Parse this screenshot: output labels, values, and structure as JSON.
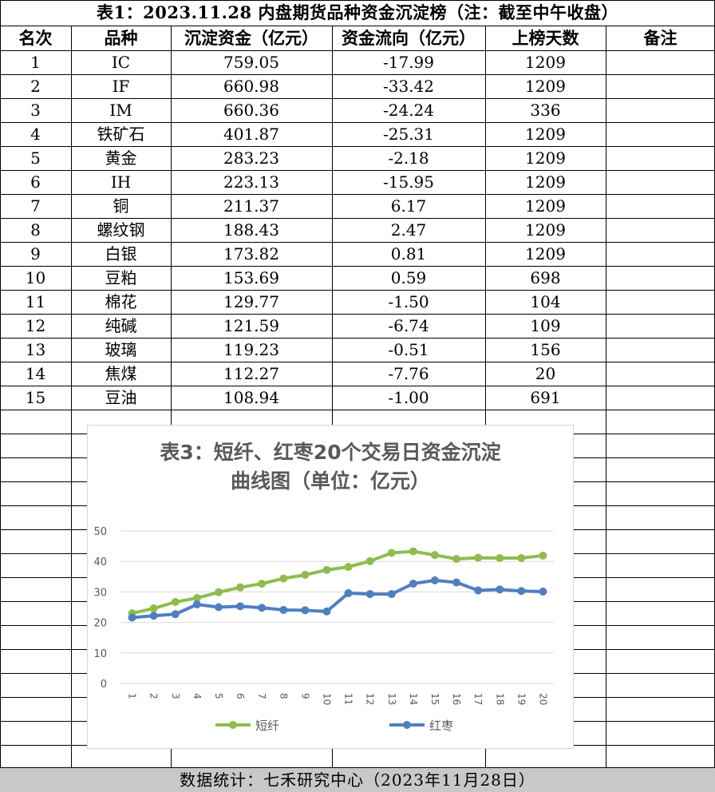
{
  "table": {
    "title": "表1：2023.11.28 内盘期货品种资金沉淀榜（注：截至中午收盘）",
    "headers": [
      "名次",
      "品种",
      "沉淀资金（亿元）",
      "资金流向（亿元）",
      "上榜天数",
      "备注"
    ],
    "rows": [
      [
        "1",
        "IC",
        "759.05",
        "-17.99",
        "1209",
        ""
      ],
      [
        "2",
        "IF",
        "660.98",
        "-33.42",
        "1209",
        ""
      ],
      [
        "3",
        "IM",
        "660.36",
        "-24.24",
        "336",
        ""
      ],
      [
        "4",
        "铁矿石",
        "401.87",
        "-25.31",
        "1209",
        ""
      ],
      [
        "5",
        "黄金",
        "283.23",
        "-2.18",
        "1209",
        ""
      ],
      [
        "6",
        "IH",
        "223.13",
        "-15.95",
        "1209",
        ""
      ],
      [
        "7",
        "铜",
        "211.37",
        "6.17",
        "1209",
        ""
      ],
      [
        "8",
        "螺纹钢",
        "188.43",
        "2.47",
        "1209",
        ""
      ],
      [
        "9",
        "白银",
        "173.82",
        "0.81",
        "1209",
        ""
      ],
      [
        "10",
        "豆粕",
        "153.69",
        "0.59",
        "698",
        ""
      ],
      [
        "11",
        "棉花",
        "129.77",
        "-1.50",
        "104",
        ""
      ],
      [
        "12",
        "纯碱",
        "121.59",
        "-6.74",
        "109",
        ""
      ],
      [
        "13",
        "玻璃",
        "119.23",
        "-0.51",
        "156",
        ""
      ],
      [
        "14",
        "焦煤",
        "112.27",
        "-7.76",
        "20",
        ""
      ],
      [
        "15",
        "豆油",
        "108.94",
        "-1.00",
        "691",
        ""
      ]
    ]
  },
  "chart_data": {
    "type": "line",
    "title": "表3：短纤、红枣20个交易日资金沉淀曲线图（单位：亿元）",
    "title_lines": [
      "表3：短纤、红枣20个交易日资金沉淀",
      "曲线图（单位：亿元）"
    ],
    "categories": [
      "1",
      "2",
      "3",
      "4",
      "5",
      "6",
      "7",
      "8",
      "9",
      "10",
      "11",
      "12",
      "13",
      "14",
      "15",
      "16",
      "17",
      "18",
      "19",
      "20"
    ],
    "series": [
      {
        "name": "短纤",
        "color": "#8fbc4f",
        "values": [
          23.0,
          24.6,
          26.7,
          28.0,
          29.9,
          31.5,
          32.7,
          34.4,
          35.6,
          37.2,
          38.2,
          40.1,
          42.8,
          43.3,
          42.1,
          40.8,
          41.2,
          41.1,
          41.1,
          41.9
        ]
      },
      {
        "name": "红枣",
        "color": "#4f7fbf",
        "values": [
          21.6,
          22.2,
          22.7,
          25.9,
          25.0,
          25.3,
          24.8,
          24.1,
          24.0,
          23.6,
          29.6,
          29.3,
          29.3,
          32.7,
          33.8,
          33.1,
          30.5,
          30.8,
          30.3,
          30.1
        ]
      }
    ],
    "ylim": [
      0,
      50
    ],
    "yticks": [
      0,
      10,
      20,
      30,
      40,
      50
    ],
    "grid": true,
    "legend": "bottom"
  },
  "footer": "数据统计：七禾研究中心（2023年11月28日）"
}
